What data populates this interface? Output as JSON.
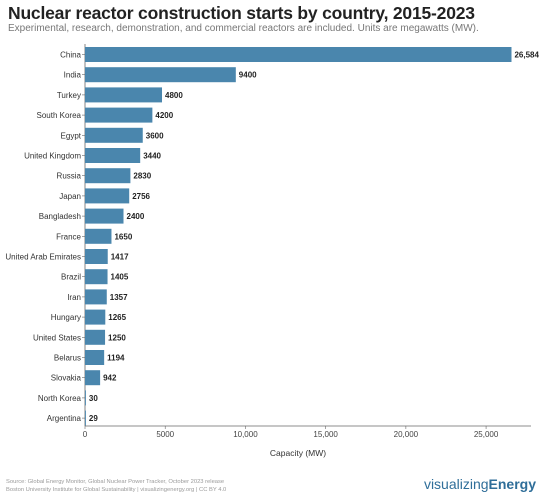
{
  "header": {
    "title": "Nuclear reactor construction starts by country, 2015-2023",
    "subtitle": "Experimental, research, demonstration, and commercial reactors are included. Units are megawatts (MW)."
  },
  "footer": {
    "source_line1": "Source: Global Energy Monitor, Global Nuclear Power Tracker, October 2023 release",
    "source_line2": "Boston University Institute for Global Sustainability | visualizingenergy.org | CC BY 4.0",
    "brand_prefix": "visualizing",
    "brand_suffix": "Energy"
  },
  "chart_data": {
    "type": "bar",
    "orientation": "horizontal",
    "title": "Nuclear reactor construction starts by country, 2015-2023",
    "subtitle": "Experimental, research, demonstration, and commercial reactors are included. Units are megawatts (MW).",
    "xlabel": "Capacity (MW)",
    "ylabel": "",
    "categories": [
      "China",
      "India",
      "Turkey",
      "South Korea",
      "Egypt",
      "United Kingdom",
      "Russia",
      "Japan",
      "Bangladesh",
      "France",
      "United Arab Emirates",
      "Brazil",
      "Iran",
      "Hungary",
      "United States",
      "Belarus",
      "Slovakia",
      "North Korea",
      "Argentina"
    ],
    "values": [
      26584,
      9400,
      4800,
      4200,
      3600,
      3440,
      2830,
      2756,
      2400,
      1650,
      1417,
      1405,
      1357,
      1265,
      1250,
      1194,
      942,
      30,
      29
    ],
    "value_labels": [
      "26,584",
      "9400",
      "4800",
      "4200",
      "3600",
      "3440",
      "2830",
      "2756",
      "2400",
      "1650",
      "1417",
      "1405",
      "1357",
      "1265",
      "1250",
      "1194",
      "942",
      "30",
      "29"
    ],
    "xlim": [
      0,
      27800
    ],
    "xticks": [
      0,
      5000,
      10000,
      15000,
      20000,
      25000
    ],
    "xtick_labels": [
      "0",
      "5000",
      "10,000",
      "15,000",
      "20,000",
      "25,000"
    ],
    "grid": false,
    "bar_color": "#4a86ad"
  }
}
